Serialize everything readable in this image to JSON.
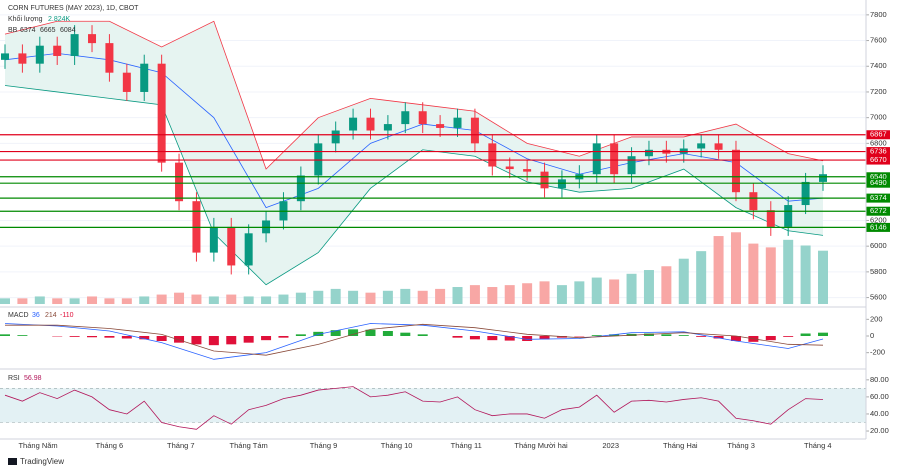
{
  "header": {
    "title": "CORN FUTURES (MAY 2023), 1D, CBOT",
    "volume_name": "Khối lượng",
    "volume_value": "2.824K",
    "bb_name": "BB",
    "bb_values": [
      6374,
      6665,
      6084
    ]
  },
  "chart_data": [
    {
      "type": "candlestick",
      "xlim": [
        0,
        47
      ],
      "xticks": [
        {
          "value": 1.9,
          "label": "Tháng Năm"
        },
        {
          "value": 6.0,
          "label": "Tháng 6"
        },
        {
          "value": 10.1,
          "label": "Tháng 7"
        },
        {
          "value": 14.0,
          "label": "Tháng Tám"
        },
        {
          "value": 18.3,
          "label": "Tháng 9"
        },
        {
          "value": 22.5,
          "label": "Tháng 10"
        },
        {
          "value": 26.5,
          "label": "Tháng 11"
        },
        {
          "value": 30.8,
          "label": "Tháng Mười hai"
        },
        {
          "value": 34.8,
          "label": "2023"
        },
        {
          "value": 38.8,
          "label": "Tháng Hai"
        },
        {
          "value": 42.3,
          "label": "Tháng 3"
        },
        {
          "value": 46.7,
          "label": "Tháng 4"
        }
      ],
      "ylim": [
        5550,
        7900
      ],
      "yticks": [
        5600,
        5800,
        6000,
        6200,
        6800,
        7000,
        7200,
        7400,
        7600,
        7800
      ],
      "up_color": "#089981",
      "down_color": "#f23645",
      "open": [
        7450,
        7500,
        7420,
        7560,
        7480,
        7650,
        7580,
        7350,
        7200,
        7420,
        6650,
        6350,
        5950,
        6150,
        5850,
        6100,
        6200,
        6350,
        6550,
        6800,
        6900,
        7000,
        6900,
        6950,
        7050,
        6950,
        6920,
        7000,
        6800,
        6620,
        6600,
        6580,
        6450,
        6520,
        6560,
        6800,
        6560,
        6700,
        6750,
        6720,
        6760,
        6800,
        6750,
        6420,
        6280,
        6150,
        6320,
        6500
      ],
      "high": [
        7570,
        7570,
        7630,
        7630,
        7720,
        7720,
        7650,
        7420,
        7490,
        7490,
        6720,
        6420,
        6220,
        6220,
        6170,
        6270,
        6420,
        6620,
        6870,
        6970,
        7070,
        7070,
        7020,
        7120,
        7120,
        7020,
        7070,
        7070,
        6870,
        6690,
        6670,
        6650,
        6590,
        6630,
        6870,
        6870,
        6770,
        6820,
        6820,
        6830,
        6870,
        6870,
        6820,
        6490,
        6350,
        6390,
        6570,
        6630
      ],
      "low": [
        7380,
        7350,
        7350,
        7410,
        7410,
        7510,
        7280,
        7130,
        7130,
        6580,
        6280,
        5880,
        5880,
        5780,
        5780,
        6030,
        6130,
        6280,
        6480,
        6730,
        6830,
        6830,
        6830,
        6880,
        6880,
        6850,
        6850,
        6730,
        6550,
        6530,
        6510,
        6380,
        6380,
        6450,
        6490,
        6490,
        6490,
        6630,
        6650,
        6650,
        6690,
        6680,
        6350,
        6210,
        6080,
        6080,
        6250,
        6430
      ],
      "close": [
        7500,
        7420,
        7560,
        7480,
        7650,
        7580,
        7350,
        7200,
        7420,
        6650,
        6350,
        5950,
        6150,
        5850,
        6100,
        6200,
        6350,
        6550,
        6800,
        6900,
        7000,
        6900,
        6950,
        7050,
        6950,
        6920,
        7000,
        6800,
        6620,
        6600,
        6580,
        6450,
        6520,
        6560,
        6800,
        6560,
        6700,
        6750,
        6720,
        6760,
        6800,
        6750,
        6420,
        6280,
        6150,
        6320,
        6500,
        6560
      ],
      "bands": {
        "x": [
          0,
          3,
          6,
          9,
          12,
          15,
          18,
          21,
          24,
          27,
          30,
          33,
          36,
          39,
          42,
          45,
          47
        ],
        "upper": [
          7650,
          7750,
          7750,
          7550,
          7750,
          6600,
          7000,
          7150,
          7100,
          7050,
          6800,
          6700,
          6850,
          6850,
          6950,
          6720,
          6665
        ],
        "middle": [
          7450,
          7500,
          7450,
          7350,
          7000,
          6300,
          6450,
          6800,
          6950,
          6900,
          6680,
          6560,
          6650,
          6720,
          6650,
          6350,
          6374
        ],
        "lower": [
          7250,
          7200,
          7150,
          7100,
          6100,
          5700,
          5950,
          6450,
          6750,
          6700,
          6500,
          6420,
          6450,
          6600,
          6300,
          6120,
          6084
        ],
        "upper_color": "#f23645",
        "middle_color": "#2962ff",
        "lower_color": "#089981",
        "fill": "#e6f4f1"
      },
      "levels": [
        {
          "value": 6867,
          "color": "#e0001b"
        },
        {
          "value": 6736,
          "color": "#e0001b"
        },
        {
          "value": 6670,
          "color": "#e0001b"
        },
        {
          "value": 6540,
          "color": "#008a00"
        },
        {
          "value": 6490,
          "color": "#008a00"
        },
        {
          "value": 6374,
          "color": "#008a00"
        },
        {
          "value": 6272,
          "color": "#008a00"
        },
        {
          "value": 6146,
          "color": "#008a00"
        }
      ],
      "volume": {
        "ylim": [
          0,
          16
        ],
        "up_color": "#95d3cb",
        "down_color": "#f8a7a5",
        "values": [
          0.3,
          0.3,
          0.4,
          0.3,
          0.3,
          0.4,
          0.3,
          0.3,
          0.4,
          0.5,
          0.6,
          0.5,
          0.4,
          0.5,
          0.4,
          0.4,
          0.5,
          0.6,
          0.7,
          0.8,
          0.7,
          0.6,
          0.7,
          0.8,
          0.7,
          0.8,
          0.9,
          1.0,
          0.9,
          1.0,
          1.1,
          1.2,
          1.0,
          1.2,
          1.4,
          1.3,
          1.6,
          1.8,
          2.0,
          2.4,
          2.8,
          3.6,
          3.8,
          3.2,
          3.0,
          3.4,
          3.1,
          2.824
        ]
      }
    },
    {
      "type": "macd",
      "title": "MACD",
      "legend_values": [
        36,
        214,
        -110
      ],
      "xlim": [
        0,
        47
      ],
      "ylim": [
        -360,
        300
      ],
      "yticks": [
        200,
        0,
        -200
      ],
      "histogram": [
        20,
        10,
        0,
        -5,
        -10,
        -15,
        -20,
        -30,
        -40,
        -60,
        -80,
        -100,
        -110,
        -100,
        -80,
        -50,
        -20,
        20,
        50,
        70,
        80,
        75,
        60,
        40,
        20,
        0,
        -20,
        -40,
        -50,
        -55,
        -60,
        -40,
        -20,
        -5,
        10,
        20,
        25,
        30,
        20,
        10,
        -10,
        -30,
        -60,
        -70,
        -50,
        -10,
        30,
        40
      ],
      "pos_color": "#22ab3a",
      "neg_color": "#e0103a",
      "x": [
        0,
        3,
        6,
        9,
        12,
        15,
        18,
        21,
        24,
        27,
        30,
        33,
        36,
        39,
        42,
        45,
        47
      ],
      "macd": [
        150,
        120,
        60,
        -80,
        -280,
        -200,
        20,
        150,
        130,
        60,
        -40,
        -30,
        40,
        50,
        -60,
        -150,
        -36
      ],
      "signal": [
        130,
        130,
        90,
        20,
        -180,
        -230,
        -100,
        80,
        140,
        100,
        20,
        -20,
        10,
        40,
        0,
        -100,
        -110
      ],
      "macd_color": "#2962ff",
      "signal_color": "#8a4a3a"
    },
    {
      "type": "rsi",
      "title": "RSI",
      "legend_value": 56.98,
      "xlim": [
        0,
        47
      ],
      "ylim": [
        13,
        88
      ],
      "yticks": [
        {
          "value": 80,
          "label": "80.00"
        },
        {
          "value": 60,
          "label": "60.00"
        },
        {
          "value": 40,
          "label": "40.00"
        },
        {
          "value": 20,
          "label": "20.00"
        }
      ],
      "band": [
        30,
        70
      ],
      "color": "#b2165a",
      "values": [
        62,
        55,
        65,
        58,
        68,
        60,
        45,
        40,
        55,
        30,
        25,
        22,
        38,
        28,
        45,
        50,
        58,
        62,
        68,
        70,
        72,
        60,
        62,
        66,
        55,
        54,
        60,
        45,
        38,
        40,
        40,
        35,
        45,
        48,
        62,
        42,
        55,
        56,
        54,
        57,
        59,
        55,
        35,
        32,
        28,
        45,
        58,
        56.98
      ]
    }
  ],
  "footer": {
    "brand": "TradingView"
  }
}
